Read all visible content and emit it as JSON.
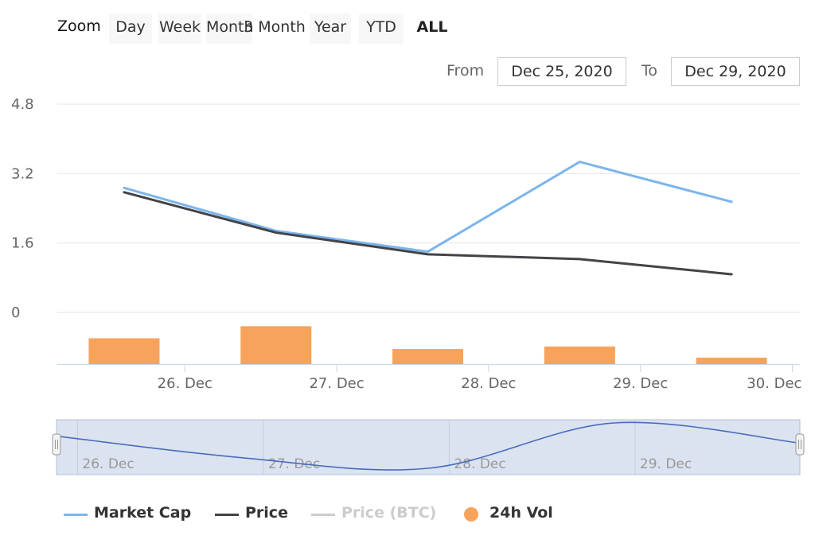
{
  "zoom": {
    "label": "Zoom",
    "buttons": [
      "Day",
      "Week",
      "Month",
      "3 Month",
      "Year",
      "YTD",
      "ALL"
    ],
    "active": "ALL"
  },
  "range": {
    "from_label": "From",
    "from_value": "Dec 25, 2020",
    "to_label": "To",
    "to_value": "Dec 29, 2020"
  },
  "colors": {
    "market_cap": "#7cb5ec",
    "price": "#434348",
    "price_btc": "#cccccc",
    "volume": "#f7a35c",
    "navigator_fill": "#dbe3f1",
    "navigator_line": "#4a6bbd"
  },
  "chart_data": {
    "type": "line",
    "title": "",
    "xlabel": "",
    "ylabel": "",
    "x_tick_labels": [
      "26. Dec",
      "27. Dec",
      "28. Dec",
      "29. Dec",
      "30. Dec"
    ],
    "x_ticks_day": [
      1,
      2,
      3,
      4,
      5
    ],
    "x_range_day": [
      0.16,
      5.05
    ],
    "y_ticks": [
      0,
      1.6,
      3.2,
      4.8
    ],
    "y_tick_labels": [
      "0",
      "1.6",
      "3.2",
      "4.8"
    ],
    "ylim": [
      0,
      4.8
    ],
    "series": [
      {
        "name": "Market Cap",
        "type": "line",
        "x": [
          0.6,
          1.6,
          2.6,
          3.6,
          4.6
        ],
        "values": [
          2.87,
          1.88,
          1.4,
          3.47,
          2.55
        ]
      },
      {
        "name": "Price",
        "type": "line",
        "x": [
          0.6,
          1.6,
          2.6,
          3.6,
          4.6
        ],
        "values": [
          2.77,
          1.84,
          1.34,
          1.23,
          0.88
        ]
      },
      {
        "name": "Price (BTC)",
        "type": "line",
        "visible": false,
        "x": [],
        "values": []
      },
      {
        "name": "24h Vol",
        "type": "bar",
        "x": [
          0.6,
          1.6,
          2.6,
          3.6,
          4.6
        ],
        "values": [
          0.6,
          0.88,
          0.35,
          0.41,
          0.15
        ]
      }
    ],
    "volume_ylim": [
      0,
      1.2
    ],
    "navigator": {
      "x_tick_labels": [
        "26. Dec",
        "27. Dec",
        "28. Dec",
        "29. Dec"
      ],
      "x_ticks_day": [
        1,
        2,
        3,
        4
      ],
      "x_range_day": [
        0.6,
        4.6
      ],
      "series_name": "Market Cap",
      "x": [
        0.6,
        1.6,
        2.6,
        3.6,
        4.6
      ],
      "values": [
        2.87,
        1.88,
        1.4,
        3.47,
        2.55
      ]
    }
  },
  "legend": {
    "items": [
      "Market Cap",
      "Price",
      "Price (BTC)",
      "24h Vol"
    ]
  }
}
